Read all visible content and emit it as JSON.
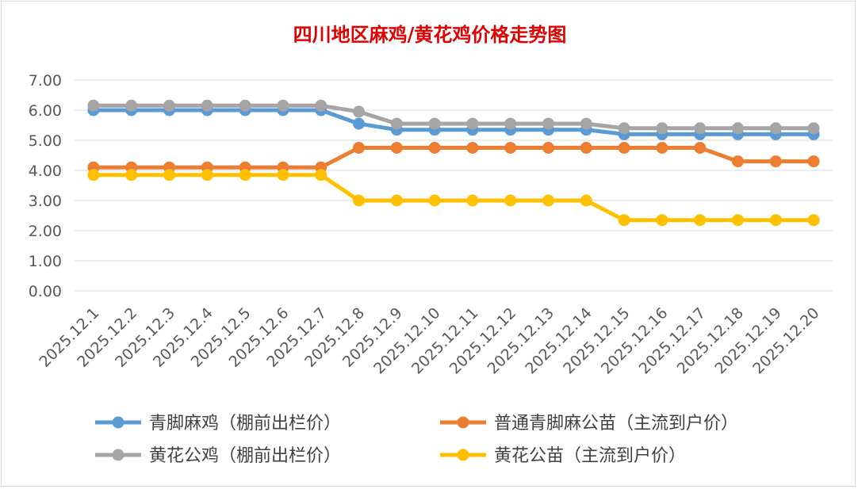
{
  "chart_data": {
    "type": "line",
    "title": "四川地区麻鸡/黄花鸡价格走势图",
    "xlabel": "",
    "ylabel": "",
    "ylim": [
      0,
      7
    ],
    "yticks": [
      "0.00",
      "1.00",
      "2.00",
      "3.00",
      "4.00",
      "5.00",
      "6.00",
      "7.00"
    ],
    "grid": true,
    "legend_position": "bottom",
    "categories": [
      "2025.12.1",
      "2025.12.2",
      "2025.12.3",
      "2025.12.4",
      "2025.12.5",
      "2025.12.6",
      "2025.12.7",
      "2025.12.8",
      "2025.12.9",
      "2025.12.10",
      "2025.12.11",
      "2025.12.12",
      "2025.12.13",
      "2025.12.14",
      "2025.12.15",
      "2025.12.16",
      "2025.12.17",
      "2025.12.18",
      "2025.12.19",
      "2025.12.20"
    ],
    "series": [
      {
        "name": "青脚麻鸡（棚前出栏价）",
        "color": "#5b9bd5",
        "values": [
          6.0,
          6.0,
          6.0,
          6.0,
          6.0,
          6.0,
          6.0,
          5.55,
          5.35,
          5.35,
          5.35,
          5.35,
          5.35,
          5.35,
          5.2,
          5.2,
          5.2,
          5.2,
          5.2,
          5.2
        ]
      },
      {
        "name": "普通青脚麻公苗（主流到户价）",
        "color": "#ed7d31",
        "values": [
          4.1,
          4.1,
          4.1,
          4.1,
          4.1,
          4.1,
          4.1,
          4.75,
          4.75,
          4.75,
          4.75,
          4.75,
          4.75,
          4.75,
          4.75,
          4.75,
          4.75,
          4.3,
          4.3,
          4.3
        ]
      },
      {
        "name": "黄花公鸡（棚前出栏价）",
        "color": "#a5a5a5",
        "values": [
          6.15,
          6.15,
          6.15,
          6.15,
          6.15,
          6.15,
          6.15,
          5.95,
          5.55,
          5.55,
          5.55,
          5.55,
          5.55,
          5.55,
          5.4,
          5.4,
          5.4,
          5.4,
          5.4,
          5.4
        ]
      },
      {
        "name": "黄花公苗（主流到户价）",
        "color": "#ffc000",
        "values": [
          3.85,
          3.85,
          3.85,
          3.85,
          3.85,
          3.85,
          3.85,
          3.0,
          3.0,
          3.0,
          3.0,
          3.0,
          3.0,
          3.0,
          2.35,
          2.35,
          2.35,
          2.35,
          2.35,
          2.35
        ]
      }
    ]
  }
}
